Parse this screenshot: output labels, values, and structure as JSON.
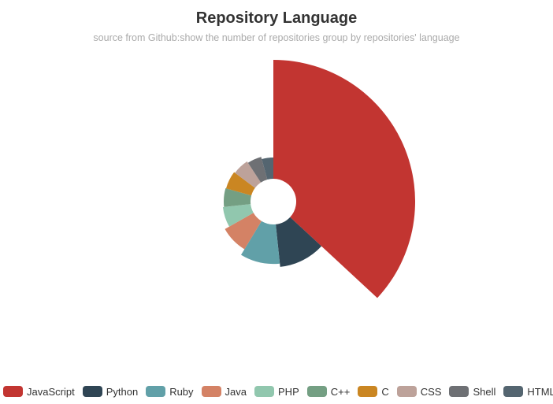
{
  "chart_data": {
    "type": "pie",
    "variant": "nightingale-rose",
    "title": "Repository Language",
    "subtitle": "source from Github:show the number of repositories group by repositories' language",
    "legend_position": "bottom",
    "series": [
      {
        "name": "JavaScript",
        "value": 1000,
        "color": "#c23531"
      },
      {
        "name": "Python",
        "value": 310,
        "color": "#2f4554"
      },
      {
        "name": "Ruby",
        "value": 280,
        "color": "#61a0a8"
      },
      {
        "name": "Java",
        "value": 220,
        "color": "#d48265"
      },
      {
        "name": "PHP",
        "value": 175,
        "color": "#91c7ae"
      },
      {
        "name": "C++",
        "value": 165,
        "color": "#749f83"
      },
      {
        "name": "C",
        "value": 160,
        "color": "#ca8622"
      },
      {
        "name": "CSS",
        "value": 150,
        "color": "#bda29a"
      },
      {
        "name": "Shell",
        "value": 135,
        "color": "#6e7074"
      },
      {
        "name": "HTML",
        "value": 115,
        "color": "#546570"
      }
    ]
  }
}
